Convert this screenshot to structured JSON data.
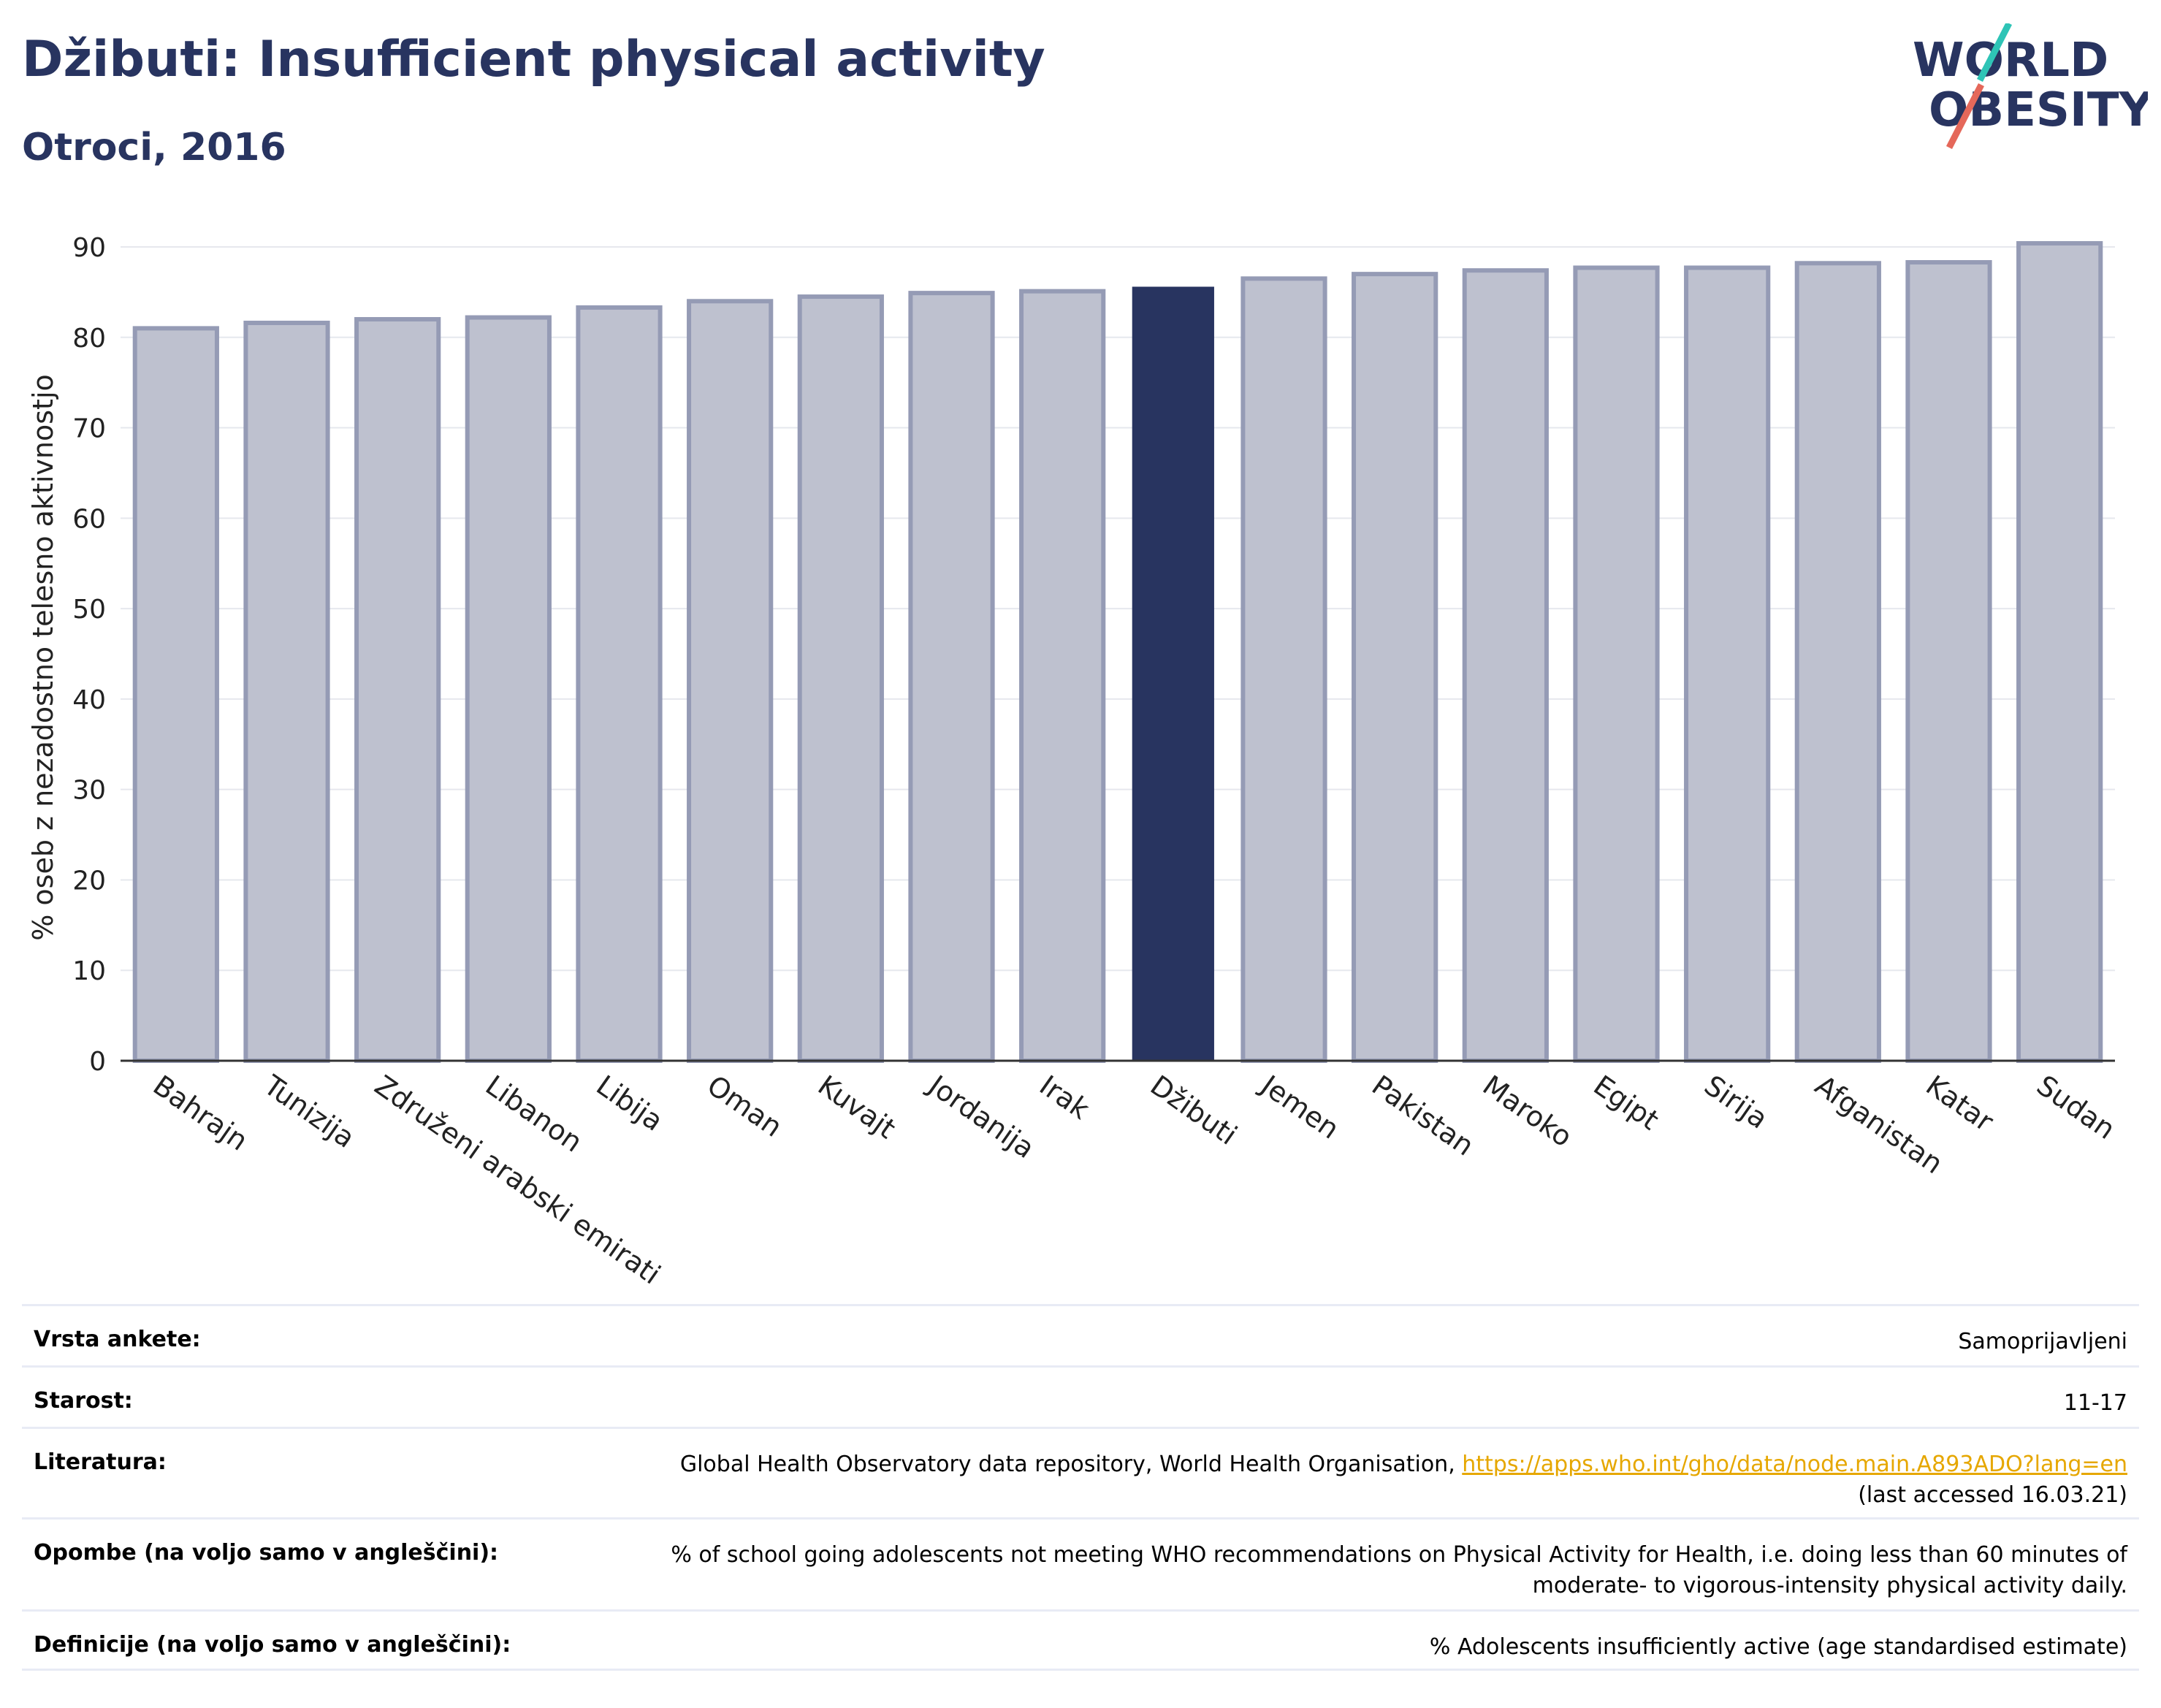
{
  "header": {
    "title": "Džibuti: Insufficient physical activity",
    "subtitle": "Otroci, 2016"
  },
  "logo": {
    "line1": "WORLD",
    "line2": "OBESITY",
    "text_color": "#283460",
    "slash_colors": [
      "#2ec4b6",
      "#e5685a"
    ]
  },
  "chart_data": {
    "type": "bar",
    "title": "",
    "xlabel": "",
    "ylabel": "% oseb z nezadostno telesno aktivnostjo",
    "ylim": [
      0,
      90
    ],
    "yticks": [
      0,
      10,
      20,
      30,
      40,
      50,
      60,
      70,
      80,
      90
    ],
    "grid": true,
    "categories": [
      "Bahrajn",
      "Tunizija",
      "Združeni arabski emirati",
      "Libanon",
      "Libija",
      "Oman",
      "Kuvajt",
      "Jordanija",
      "Irak",
      "Džibuti",
      "Jemen",
      "Pakistan",
      "Maroko",
      "Egipt",
      "Sirija",
      "Afganistan",
      "Katar",
      "Sudan"
    ],
    "values": [
      81.0,
      81.6,
      82.0,
      82.2,
      83.3,
      84.0,
      84.5,
      84.9,
      85.1,
      85.6,
      86.5,
      87.0,
      87.4,
      87.7,
      87.7,
      88.2,
      88.3,
      90.4
    ],
    "highlight": "Džibuti",
    "colors": {
      "bar": "#bec1cf",
      "bar_border": "#959bb5",
      "highlight": "#283460",
      "grid": "#e6e8ee",
      "axis": "#333333"
    }
  },
  "info": {
    "rows": [
      {
        "label": "Vrsta ankete:",
        "value": "Samoprijavljeni"
      },
      {
        "label": "Starost:",
        "value": "11-17"
      },
      {
        "label": "Literatura:",
        "value": "Global Health Observatory data repository, World Health Organisation, ",
        "link": "https://apps.who.int/gho/data/node.main.A893ADO?lang=en",
        "value2": "(last accessed 16.03.21)"
      },
      {
        "label": "Opombe (na voljo samo v angleščini):",
        "value": "% of school going adolescents not meeting WHO recommendations on Physical Activity for Health, i.e. doing less than 60 minutes of",
        "value2": "moderate- to vigorous-intensity physical activity daily."
      },
      {
        "label": "Definicije (na voljo samo v angleščini):",
        "value": "% Adolescents insufficiently active (age standardised estimate)"
      }
    ]
  }
}
